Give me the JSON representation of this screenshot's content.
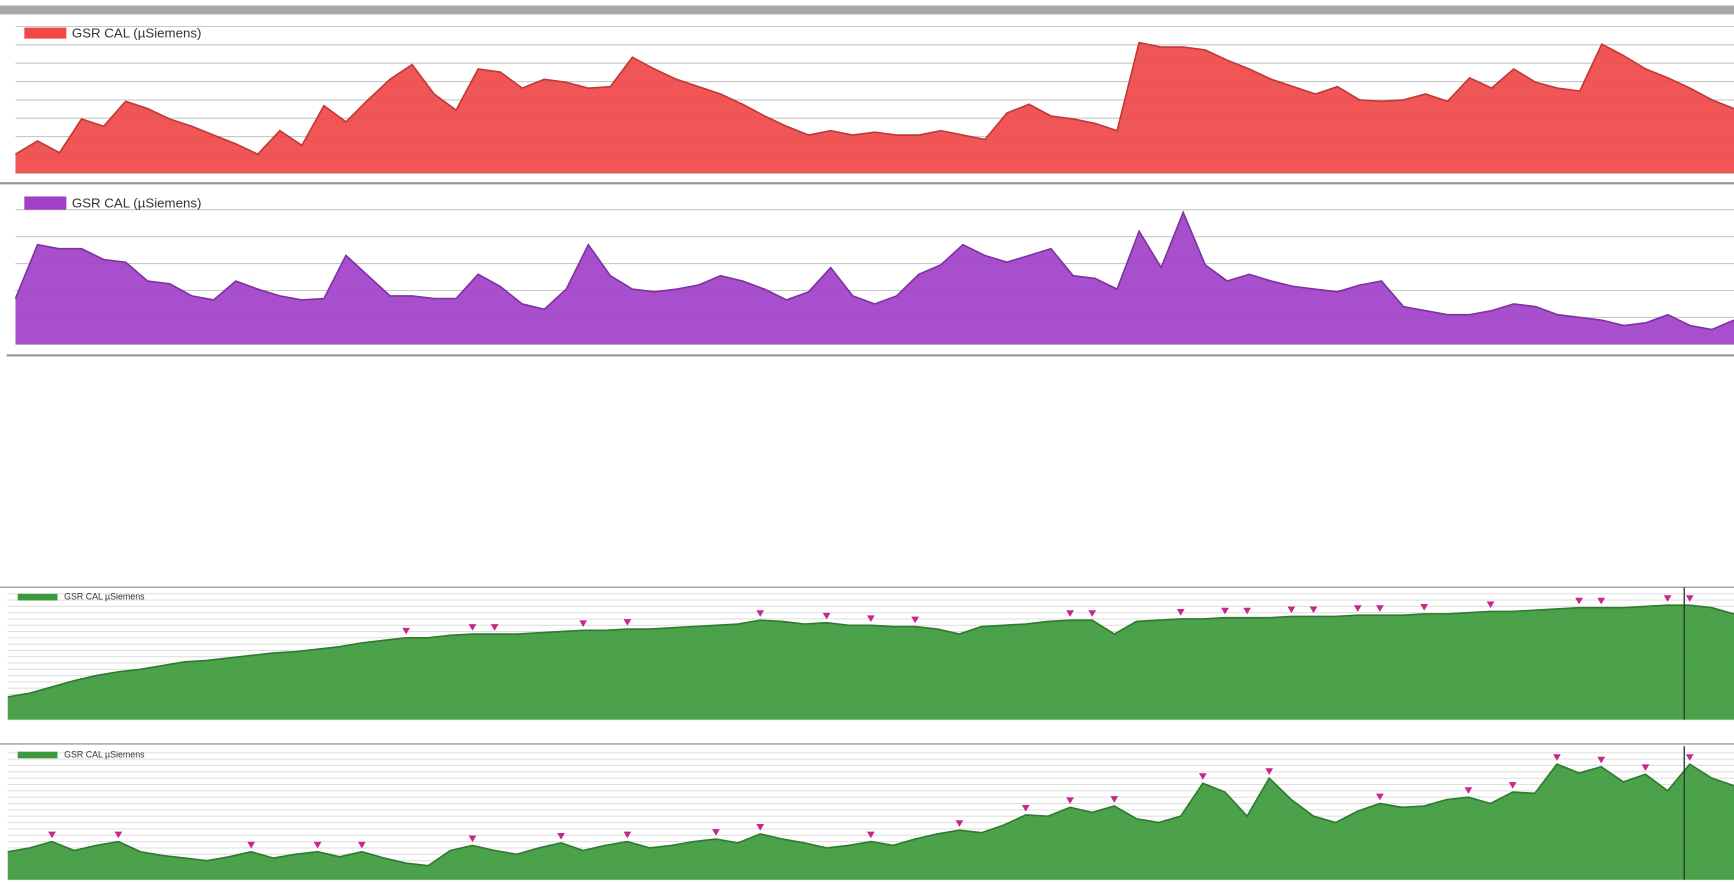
{
  "chart_data": [
    {
      "type": "area",
      "series": [
        {
          "name": "GSR CAL (µSiemens)",
          "color": "#f04848",
          "values": [
            13,
            22,
            14,
            37,
            32,
            49,
            44,
            37,
            32,
            26,
            20,
            13,
            29,
            19,
            46,
            35,
            50,
            64,
            74,
            54,
            43,
            71,
            69,
            58,
            64,
            62,
            58,
            59,
            79,
            71,
            64,
            59,
            54,
            47,
            39,
            32,
            26,
            29,
            26,
            28,
            26,
            26,
            29,
            26,
            23,
            41,
            47,
            39,
            37,
            34,
            29,
            89,
            86,
            86,
            84,
            77,
            71,
            64,
            59,
            54,
            59,
            50,
            49,
            50,
            54,
            49,
            65,
            58,
            71,
            62,
            58,
            56,
            88,
            80,
            71,
            65,
            58,
            50,
            44
          ]
        }
      ],
      "ylim": [
        0,
        100
      ],
      "yticks": [
        0,
        12.5,
        25,
        37.5,
        50,
        62.5,
        75,
        87.5,
        100
      ],
      "grid": true
    },
    {
      "type": "area",
      "series": [
        {
          "name": "GSR CAL (µSiemens)",
          "color": "#a040c8",
          "values": [
            34,
            74,
            71,
            71,
            63,
            61,
            47,
            45,
            36,
            33,
            47,
            41,
            36,
            33,
            34,
            66,
            51,
            36,
            36,
            34,
            34,
            52,
            43,
            30,
            26,
            41,
            74,
            51,
            41,
            39,
            41,
            44,
            51,
            47,
            41,
            33,
            39,
            57,
            36,
            30,
            36,
            52,
            59,
            74,
            66,
            61,
            66,
            71,
            51,
            49,
            41,
            84,
            57,
            98,
            59,
            47,
            52,
            47,
            43,
            41,
            39,
            44,
            47,
            28,
            25,
            22,
            22,
            25,
            30,
            28,
            22,
            20,
            18,
            14,
            16,
            22,
            14,
            11,
            18
          ]
        }
      ],
      "ylim": [
        0,
        100
      ],
      "yticks": [
        0,
        20,
        40,
        60,
        80,
        100
      ],
      "grid": true
    },
    {
      "type": "area",
      "markers": true,
      "marker_color": "#c8288c",
      "series": [
        {
          "name": "GSR CAL µSiemens",
          "color": "#3c9a3c",
          "values": [
            18,
            21,
            26,
            31,
            35,
            38,
            40,
            43,
            46,
            47,
            49,
            51,
            53,
            54,
            56,
            58,
            61,
            63,
            65,
            65,
            67,
            68,
            68,
            68,
            69,
            70,
            71,
            71,
            72,
            72,
            73,
            74,
            75,
            76,
            79,
            78,
            76,
            77,
            75,
            75,
            74,
            74,
            72,
            68,
            74,
            75,
            76,
            78,
            79,
            79,
            68,
            78,
            79,
            80,
            80,
            81,
            81,
            81,
            82,
            82,
            82,
            83,
            83,
            83,
            84,
            84,
            85,
            86,
            86,
            87,
            88,
            89,
            89,
            89,
            90,
            91,
            91,
            89,
            84
          ]
        }
      ],
      "ylim": [
        0,
        100
      ],
      "yticks": [
        0,
        5,
        10,
        15,
        20,
        25,
        30,
        35,
        40,
        45,
        50,
        55,
        60,
        65,
        70,
        75,
        80,
        85,
        90,
        95,
        100
      ],
      "grid": true
    },
    {
      "type": "area",
      "markers": true,
      "marker_color": "#c8288c",
      "series": [
        {
          "name": "GSR CAL µSiemens",
          "color": "#3c9a3c",
          "values": [
            22,
            25,
            30,
            23,
            27,
            30,
            22,
            19,
            17,
            15,
            18,
            22,
            17,
            20,
            22,
            18,
            22,
            17,
            13,
            11,
            23,
            27,
            23,
            20,
            25,
            29,
            23,
            27,
            30,
            25,
            27,
            30,
            32,
            29,
            36,
            32,
            29,
            25,
            27,
            30,
            27,
            32,
            36,
            39,
            37,
            43,
            51,
            50,
            57,
            53,
            58,
            48,
            45,
            50,
            76,
            69,
            50,
            80,
            63,
            50,
            45,
            54,
            60,
            57,
            58,
            63,
            65,
            60,
            69,
            68,
            91,
            84,
            89,
            77,
            83,
            70,
            91,
            80,
            74
          ]
        }
      ],
      "ylim": [
        0,
        100
      ],
      "yticks": [
        0,
        5,
        10,
        15,
        20,
        25,
        30,
        35,
        40,
        45,
        50,
        55,
        60,
        65,
        70,
        75,
        80,
        85,
        90,
        95,
        100
      ],
      "grid": true
    }
  ]
}
